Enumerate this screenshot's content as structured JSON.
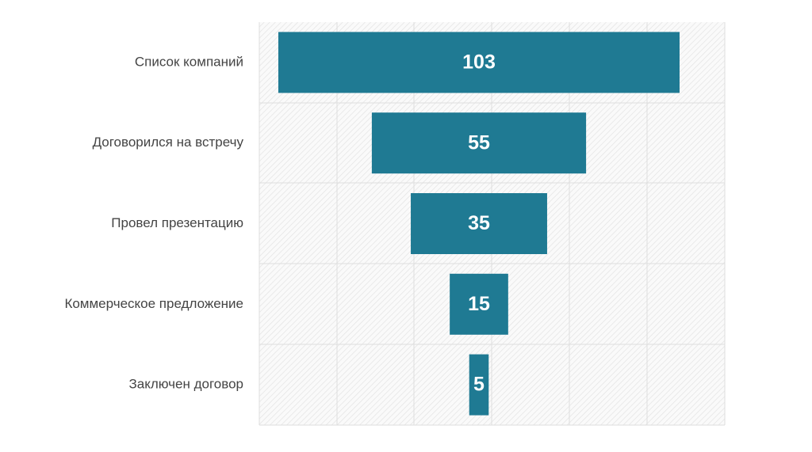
{
  "chart_data": {
    "type": "funnel",
    "categories": [
      "Список компаний",
      "Договорился на встречу",
      "Провел презентацию",
      "Коммерческое предложение",
      "Заключен договор"
    ],
    "values": [
      103,
      55,
      35,
      15,
      5
    ],
    "color": "#1f7a93"
  }
}
